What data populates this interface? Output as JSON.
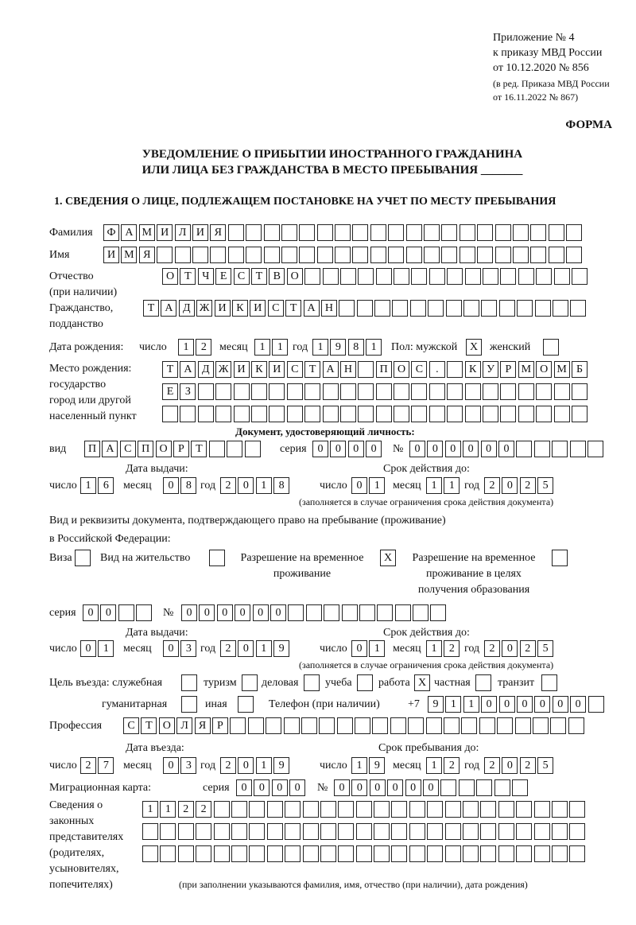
{
  "header": {
    "appendix_lines": [
      "Приложение № 4",
      "к приказу МВД России",
      "от 10.12.2020 № 856"
    ],
    "edition_lines": [
      "(в ред. Приказа МВД России",
      "от 16.11.2022 № 867)"
    ],
    "form_label": "ФОРМА",
    "title_line1": "УВЕДОМЛЕНИЕ О ПРИБЫТИИ ИНОСТРАННОГО ГРАЖДАНИНА",
    "title_line2": "ИЛИ ЛИЦА БЕЗ ГРАЖДАНСТВА В МЕСТО ПРЕБЫВАНИЯ _______",
    "section1": "1. СВЕДЕНИЯ О ЛИЦЕ, ПОДЛЕЖАЩЕМ ПОСТАНОВКЕ НА УЧЕТ ПО МЕСТУ ПРЕБЫВАНИЯ"
  },
  "labels": {
    "surname": "Фамилия",
    "name": "Имя",
    "patronymic": "Отчество",
    "patronymic_note": "(при наличии)",
    "citizenship": "Гражданство,",
    "citizenship2": "подданство",
    "birth_date": "Дата рождения:",
    "day": "число",
    "month": "месяц",
    "year": "год",
    "sex": "Пол: мужской",
    "female": "женский",
    "birthplace": [
      "Место рождения:",
      "государство",
      "город или другой",
      "населенный пункт"
    ],
    "id_doc": "Документ, удостоверяющий личность:",
    "kind": "вид",
    "series": "серия",
    "number": "№",
    "issue_date": "Дата выдачи:",
    "valid_until": "Срок действия до:",
    "validity_note": "(заполняется в случае ограничения срока действия документа)",
    "right_doc1": "Вид и реквизиты документа, подтверждающего право на пребывание (проживание)",
    "right_doc2": "в Российской Федерации:",
    "visa": "Виза",
    "residence_permit": "Вид на жительство",
    "temp_permit": [
      "Разрешение на временное",
      "проживание"
    ],
    "temp_permit_edu": [
      "Разрешение на временное",
      "проживание в целях",
      "получения образования"
    ],
    "purpose": "Цель въезда: служебная",
    "tourism": "туризм",
    "business": "деловая",
    "study": "учеба",
    "work": "работа",
    "private": "частная",
    "transit": "транзит",
    "humanitarian": "гуманитарная",
    "other": "иная",
    "phone": "Телефон (при наличии)",
    "phone_prefix": "+7",
    "profession": "Профессия",
    "entry_date": "Дата въезда:",
    "stay_until": "Срок пребывания до:",
    "migration_card": "Миграционная карта:",
    "representatives": [
      "Сведения о",
      "законных",
      "представителях",
      "(родителях,",
      "усыновителях,",
      "попечителях)"
    ],
    "representatives_note": "(при заполнении указываются фамилия, имя, отчество (при наличии), дата рождения)"
  },
  "person": {
    "surname": "ФАМИЛИЯ",
    "name": "ИМЯ",
    "patronymic": "ОТЧЕСТВО",
    "citizenship": "ТАДЖИКИСТАН",
    "birth": {
      "day": "12",
      "month": "11",
      "year": "1981"
    },
    "sex_male": "X",
    "sex_female": "",
    "birthplace": [
      "ТАДЖИКИСТАН ПОС. КУРМОМБ",
      "ЕЗ",
      ""
    ]
  },
  "id_document": {
    "kind": "ПАСПОРТ",
    "series": "0000",
    "number": "000000",
    "issue": {
      "day": "16",
      "month": "08",
      "year": "2018"
    },
    "valid": {
      "day": "01",
      "month": "11",
      "year": "2025"
    }
  },
  "right_document": {
    "visa": "",
    "residence_permit": "",
    "temp_permit": "X",
    "temp_permit_edu": "",
    "series": "00",
    "number": "000000",
    "issue": {
      "day": "01",
      "month": "03",
      "year": "2019"
    },
    "valid": {
      "day": "01",
      "month": "12",
      "year": "2025"
    }
  },
  "purpose": {
    "service": "",
    "tourism": "",
    "business": "",
    "study": "",
    "work": "X",
    "private": "",
    "transit": "",
    "humanitarian": "",
    "other": ""
  },
  "phone": "911000000",
  "profession": "СТОЛЯР",
  "entry": {
    "day": "27",
    "month": "03",
    "year": "2019"
  },
  "stay_until": {
    "day": "19",
    "month": "12",
    "year": "2025"
  },
  "migration_card": {
    "series": "0000",
    "number": "000000"
  },
  "representatives": [
    "1122",
    "",
    ""
  ]
}
